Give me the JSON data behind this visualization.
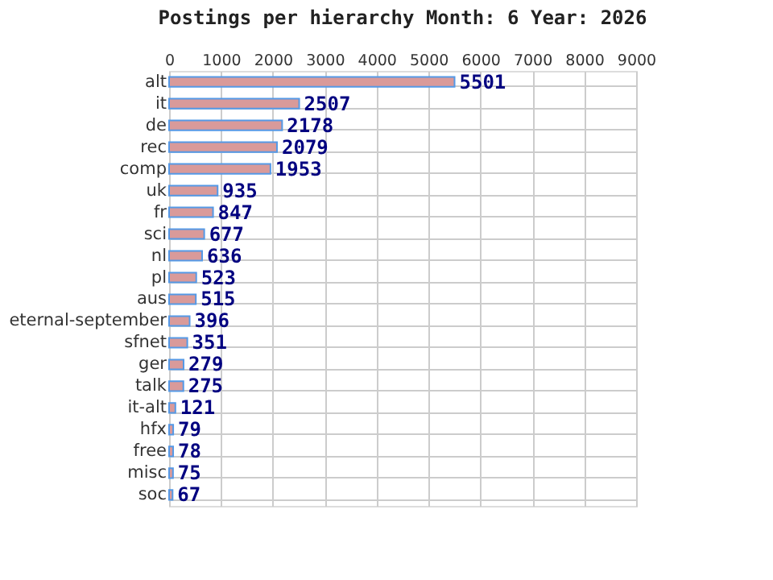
{
  "chart_data": {
    "type": "bar",
    "orientation": "horizontal",
    "title": "Postings per hierarchy Month: 6 Year: 2026",
    "categories": [
      "alt",
      "it",
      "de",
      "rec",
      "comp",
      "uk",
      "fr",
      "sci",
      "nl",
      "pl",
      "aus",
      "eternal-september",
      "sfnet",
      "ger",
      "talk",
      "it-alt",
      "hfx",
      "free",
      "misc",
      "soc"
    ],
    "values": [
      5501,
      2507,
      2178,
      2079,
      1953,
      935,
      847,
      677,
      636,
      523,
      515,
      396,
      351,
      279,
      275,
      121,
      79,
      78,
      75,
      67
    ],
    "color": "#d99a9a",
    "xlim": [
      0,
      9000
    ],
    "xticks": [
      0,
      1000,
      2000,
      3000,
      4000,
      5000,
      6000,
      7000,
      8000,
      9000
    ],
    "grid": true,
    "data_labels": true
  }
}
